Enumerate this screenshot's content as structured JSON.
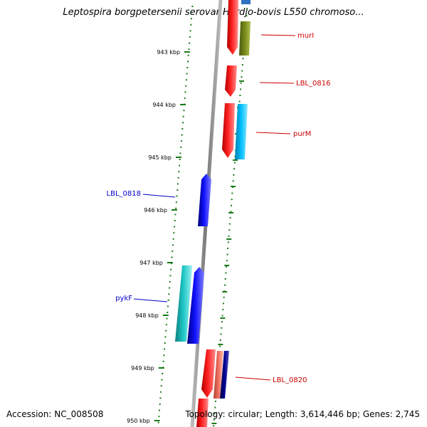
{
  "title": "Leptospira borgpetersenii serovar Hardjo-bovis L550 chromoso...",
  "footer": {
    "accession": "Accession: NC_008508",
    "topology": "Topology: circular; Length: 3,614,446 bp; Genes: 2,745"
  },
  "ticks": [
    {
      "label": "943 kbp"
    },
    {
      "label": "944 kbp"
    },
    {
      "label": "945 kbp"
    },
    {
      "label": "946 kbp"
    },
    {
      "label": "947 kbp"
    },
    {
      "label": "948 kbp"
    },
    {
      "label": "949 kbp"
    },
    {
      "label": "950 kbp"
    }
  ],
  "gene_labels": [
    {
      "name": "murI",
      "color": "#cc0000"
    },
    {
      "name": "LBL_0816",
      "color": "#cc0000"
    },
    {
      "name": "purM",
      "color": "#cc0000"
    },
    {
      "name": "LBL_0818",
      "color": "#0000cc"
    },
    {
      "name": "pykF",
      "color": "#0000cc"
    },
    {
      "name": "LBL_0820",
      "color": "#cc0000"
    }
  ],
  "colors": {
    "backbone": "#888888",
    "ruler": "#1a7a1a",
    "forward_strand": "#ff0000",
    "reverse_strand": "#0000ff",
    "olive": "#7a8a1a",
    "cyan": "#00bfff",
    "teal": "#20c0c0",
    "salmon": "#f07060",
    "navy": "#000080"
  }
}
